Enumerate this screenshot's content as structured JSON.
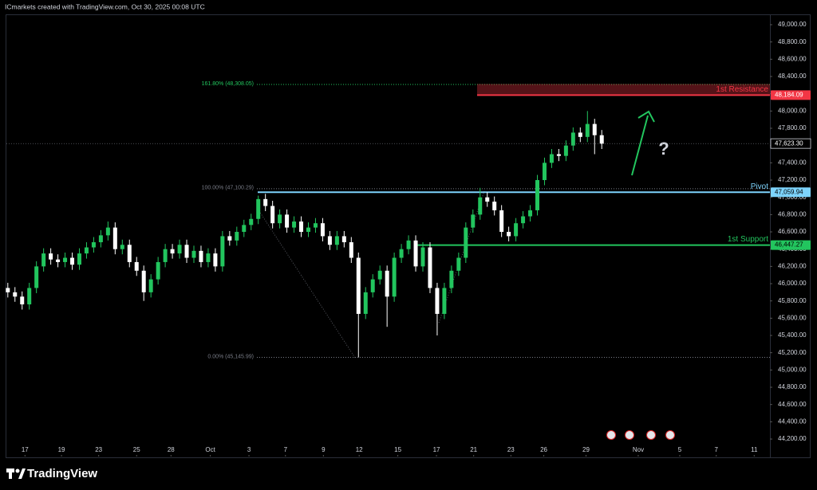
{
  "chart_data": {
    "type": "candlestick",
    "header": "ICmarkets created with TradingView.com, Oct 30, 2025 00:08 UTC",
    "brand": "TradingView",
    "annotation": "?",
    "up_color": "#22c55e",
    "down_color": "#ffffff",
    "open": [
      45950,
      45900,
      45850,
      45760,
      45950,
      46200,
      46350,
      46280,
      46250,
      46300,
      46220,
      46350,
      46420,
      46480,
      46560,
      46650,
      46400,
      46450,
      46250,
      46150,
      45900,
      46050,
      46250,
      46400,
      46350,
      46450,
      46300,
      46380,
      46250,
      46350,
      46200,
      46550,
      46500,
      46600,
      46680,
      46750,
      46980,
      46900,
      46700,
      46800,
      46650,
      46720,
      46600,
      46650,
      46700,
      46550,
      46450,
      46550,
      46480,
      46300,
      45650,
      45900,
      46050,
      46150,
      45850,
      46300,
      46400,
      46500,
      46200,
      46420,
      45950,
      45650,
      45950,
      46150,
      46300,
      46650,
      46800,
      47000,
      46950,
      46850,
      46600,
      46550,
      46700,
      46780,
      46850,
      47200,
      47400,
      47500,
      47480,
      47600,
      47750,
      47700,
      47850,
      47720
    ],
    "high": [
      46010,
      45960,
      45910,
      46010,
      46260,
      46410,
      46410,
      46340,
      46360,
      46360,
      46410,
      46480,
      46540,
      46620,
      46720,
      46710,
      46510,
      46510,
      46310,
      46210,
      46110,
      46310,
      46460,
      46460,
      46510,
      46510,
      46440,
      46440,
      46410,
      46410,
      46610,
      46610,
      46660,
      46740,
      46810,
      47020,
      47040,
      46960,
      46860,
      46860,
      46780,
      46780,
      46710,
      46760,
      46760,
      46610,
      46610,
      46610,
      46540,
      46360,
      45960,
      46110,
      46210,
      46210,
      46360,
      46460,
      46560,
      46560,
      46480,
      46480,
      46010,
      46010,
      46210,
      46360,
      46710,
      46860,
      47110,
      47060,
      47010,
      46910,
      46660,
      46760,
      46840,
      46910,
      47260,
      47460,
      47560,
      47560,
      47660,
      47810,
      47810,
      48000,
      47910,
      47780
    ],
    "low": [
      45840,
      45790,
      45700,
      45700,
      45890,
      46140,
      46220,
      46190,
      46190,
      46160,
      46160,
      46290,
      46360,
      46420,
      46500,
      46340,
      46340,
      46190,
      46090,
      45800,
      45840,
      45990,
      46190,
      46290,
      46290,
      46240,
      46240,
      46190,
      46190,
      46140,
      46140,
      46440,
      46440,
      46540,
      46620,
      46690,
      46840,
      46640,
      46640,
      46590,
      46590,
      46540,
      46540,
      46590,
      46490,
      46390,
      46390,
      46420,
      46240,
      45146,
      45590,
      45840,
      45990,
      45500,
      45790,
      46240,
      46340,
      46140,
      46140,
      45890,
      45400,
      45590,
      45890,
      46090,
      46240,
      46590,
      46740,
      46890,
      46790,
      46540,
      46490,
      46490,
      46640,
      46720,
      46790,
      47140,
      47340,
      47420,
      47420,
      47540,
      47640,
      47640,
      47500,
      47560
    ],
    "close": [
      45900,
      45850,
      45760,
      45950,
      46200,
      46350,
      46280,
      46250,
      46300,
      46220,
      46350,
      46420,
      46480,
      46560,
      46650,
      46400,
      46450,
      46250,
      46150,
      45900,
      46050,
      46250,
      46400,
      46350,
      46450,
      46300,
      46380,
      46250,
      46350,
      46200,
      46550,
      46500,
      46600,
      46680,
      46750,
      46980,
      46900,
      46700,
      46800,
      46650,
      46720,
      46600,
      46650,
      46700,
      46550,
      46450,
      46550,
      46480,
      46300,
      45650,
      45900,
      46050,
      46150,
      45850,
      46300,
      46400,
      46500,
      46200,
      46420,
      45950,
      45650,
      45950,
      46150,
      46300,
      46650,
      46800,
      47000,
      46950,
      46850,
      46600,
      46550,
      46700,
      46780,
      46850,
      47200,
      47400,
      47500,
      47480,
      47600,
      47750,
      47700,
      47850,
      47720,
      47620
    ],
    "xlim": [
      -0.2,
      106.5
    ],
    "xticks": [
      {
        "value": 2.4,
        "label": "17"
      },
      {
        "value": 7.5,
        "label": "19"
      },
      {
        "value": 12.7,
        "label": "23"
      },
      {
        "value": 18.0,
        "label": "25"
      },
      {
        "value": 22.8,
        "label": "28"
      },
      {
        "value": 28.3,
        "label": "Oct"
      },
      {
        "value": 33.7,
        "label": "3"
      },
      {
        "value": 38.8,
        "label": "7"
      },
      {
        "value": 44.1,
        "label": "9"
      },
      {
        "value": 49.1,
        "label": "12"
      },
      {
        "value": 54.5,
        "label": "15"
      },
      {
        "value": 59.9,
        "label": "17"
      },
      {
        "value": 65.1,
        "label": "21"
      },
      {
        "value": 70.3,
        "label": "23"
      },
      {
        "value": 74.9,
        "label": "26"
      },
      {
        "value": 80.8,
        "label": "29"
      },
      {
        "value": 88.1,
        "label": "Nov"
      },
      {
        "value": 93.9,
        "label": "5"
      },
      {
        "value": 99.0,
        "label": "7"
      },
      {
        "value": 104.3,
        "label": "11"
      }
    ],
    "ylim": [
      44025,
      49120
    ],
    "yticks": [
      {
        "value": 44200,
        "label": "44,200.00"
      },
      {
        "value": 44400,
        "label": "44,400.00"
      },
      {
        "value": 44600,
        "label": "44,600.00"
      },
      {
        "value": 44800,
        "label": "44,800.00"
      },
      {
        "value": 45000,
        "label": "45,000.00"
      },
      {
        "value": 45200,
        "label": "45,200.00"
      },
      {
        "value": 45400,
        "label": "45,400.00"
      },
      {
        "value": 45600,
        "label": "45,600.00"
      },
      {
        "value": 45800,
        "label": "45,800.00"
      },
      {
        "value": 46000,
        "label": "46,000.00"
      },
      {
        "value": 46200,
        "label": "46,200.00"
      },
      {
        "value": 46400,
        "label": "46,400.00"
      },
      {
        "value": 46600,
        "label": "46,600.00"
      },
      {
        "value": 46800,
        "label": "46,800.00"
      },
      {
        "value": 47000,
        "label": "47,000.00"
      },
      {
        "value": 47200,
        "label": "47,200.00"
      },
      {
        "value": 47400,
        "label": "47,400.00"
      },
      {
        "value": 47600,
        "label": "47,600.00"
      },
      {
        "value": 47800,
        "label": "47,800.00"
      },
      {
        "value": 48000,
        "label": "48,000.00"
      },
      {
        "value": 48200,
        "label": "48,200.00"
      },
      {
        "value": 48400,
        "label": "48,400.00"
      },
      {
        "value": 48600,
        "label": "48,600.00"
      },
      {
        "value": 48800,
        "label": "48,800.00"
      },
      {
        "value": 49000,
        "label": "49,000.00"
      }
    ],
    "levels": [
      {
        "name": "1st Resistance",
        "value": 48184.09,
        "price_label": "48,184.09",
        "color": "#f23645"
      },
      {
        "name": "Pivot",
        "value": 47059.94,
        "price_label": "47,059.94",
        "color": "#7dd3fc"
      },
      {
        "name": "1st Support",
        "value": 46447.27,
        "price_label": "46,447.27",
        "color": "#22c55e"
      }
    ],
    "current_price": {
      "value": 47623.3,
      "label": "47,623.30"
    },
    "fib_levels": [
      {
        "value": 48308.05,
        "label": "161.80% (48,308.05)",
        "color": "#22c55e"
      },
      {
        "value": 47100.29,
        "label": "100.00% (47,100.29)",
        "color": "#787b86"
      },
      {
        "value": 45145.99,
        "label": "0.00% (45,145.99)",
        "color": "#787b86"
      }
    ]
  }
}
